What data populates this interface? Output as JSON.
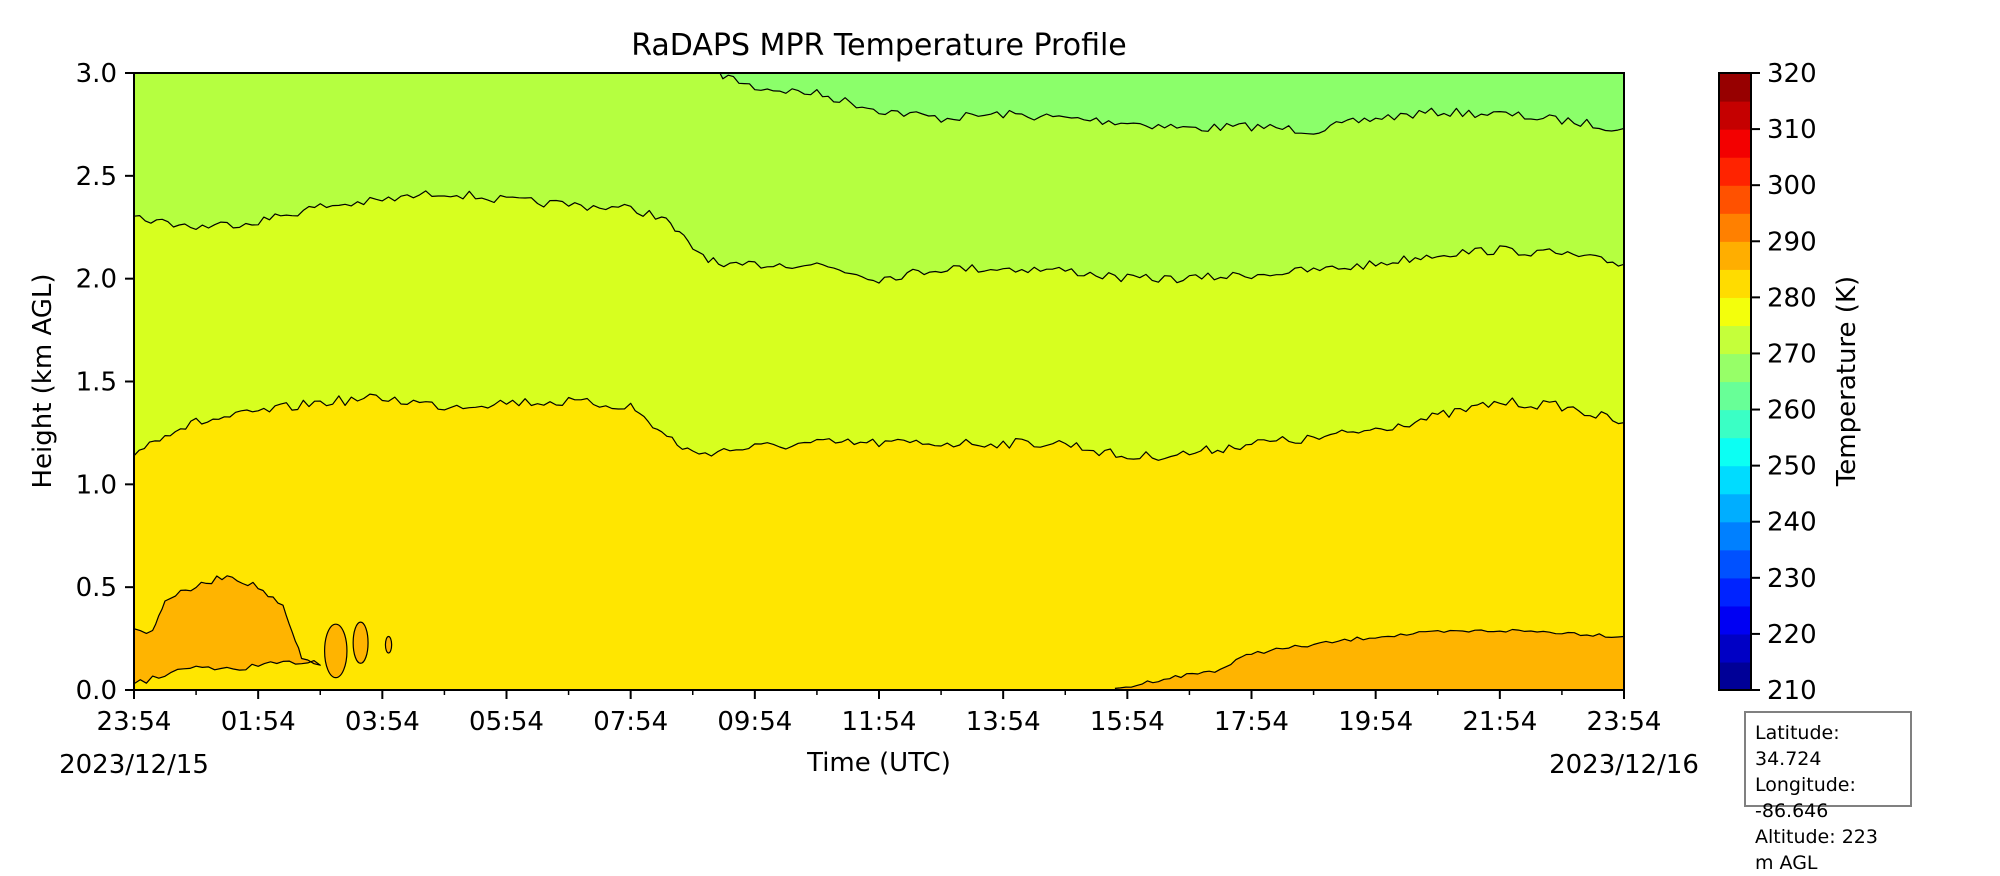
{
  "chart_data": {
    "type": "heatmap",
    "subtype": "filled-contour",
    "title": "RaDAPS MPR Temperature Profile",
    "xlabel": "Time (UTC)",
    "ylabel": "Height (km AGL)",
    "x_ticks": [
      "23:54",
      "01:54",
      "03:54",
      "05:54",
      "07:54",
      "09:54",
      "11:54",
      "13:54",
      "15:54",
      "17:54",
      "19:54",
      "21:54",
      "23:54"
    ],
    "x_tick_hours": [
      0,
      2,
      4,
      6,
      8,
      10,
      12,
      14,
      16,
      18,
      20,
      22,
      24
    ],
    "xlim_hours": [
      0,
      24
    ],
    "date_start": "2023/12/15",
    "date_end": "2023/12/16",
    "y_ticks": [
      "0.0",
      "0.5",
      "1.0",
      "1.5",
      "2.0",
      "2.5",
      "3.0"
    ],
    "ylim": [
      0,
      3.0
    ],
    "colorbar": {
      "label": "Temperature (K)",
      "range": [
        210,
        320
      ],
      "step": 5,
      "tick_labels": [
        "210",
        "220",
        "230",
        "240",
        "250",
        "260",
        "270",
        "280",
        "290",
        "300",
        "310",
        "320"
      ],
      "colormap": "jet"
    },
    "contour_bands": [
      {
        "range_K": "285-290",
        "color": "#ffb400"
      },
      {
        "range_K": "280-285",
        "color": "#ffe600"
      },
      {
        "range_K": "275-280",
        "color": "#d7ff1f"
      },
      {
        "range_K": "270-275",
        "color": "#b5ff40"
      },
      {
        "range_K": "265-270",
        "color": "#8bff6a"
      }
    ],
    "isolines": {
      "285K_morning_pocket": {
        "hours": [
          0,
          0.3,
          0.5,
          1.0,
          1.5,
          2.0,
          2.4,
          2.7,
          3.0,
          2.5,
          2.0,
          1.5,
          1.0,
          0.5,
          0
        ],
        "km": [
          0.3,
          0.28,
          0.44,
          0.5,
          0.56,
          0.5,
          0.4,
          0.15,
          0.13,
          0.13,
          0.12,
          0.1,
          0.11,
          0.07,
          0.03
        ]
      },
      "285K_evening": {
        "hours": [
          15.8,
          16.5,
          17.5,
          18.0,
          19.0,
          20.0,
          21.0,
          22.0,
          23.0,
          24.0
        ],
        "km": [
          0.0,
          0.05,
          0.1,
          0.18,
          0.22,
          0.26,
          0.28,
          0.29,
          0.28,
          0.26
        ]
      },
      "280K": {
        "hours": [
          0,
          0.5,
          1.0,
          2.0,
          3.0,
          4.0,
          5.0,
          6.0,
          7.0,
          8.0,
          8.5,
          9.0,
          10.0,
          11.0,
          12.0,
          13.0,
          14.0,
          15.0,
          16.0,
          17.0,
          18.0,
          19.0,
          20.0,
          21.0,
          22.0,
          23.0,
          24.0
        ],
        "km": [
          1.15,
          1.25,
          1.3,
          1.35,
          1.4,
          1.42,
          1.38,
          1.4,
          1.4,
          1.38,
          1.25,
          1.15,
          1.18,
          1.2,
          1.2,
          1.2,
          1.2,
          1.2,
          1.13,
          1.15,
          1.2,
          1.22,
          1.27,
          1.33,
          1.4,
          1.38,
          1.3
        ]
      },
      "275K": {
        "hours": [
          0,
          1.0,
          2.0,
          3.0,
          4.0,
          5.0,
          6.0,
          7.0,
          8.0,
          8.5,
          9.0,
          9.5,
          10.0,
          11.0,
          12.0,
          13.0,
          14.0,
          15.0,
          16.0,
          17.0,
          18.0,
          19.0,
          20.0,
          21.0,
          22.0,
          23.0,
          24.0
        ],
        "km": [
          2.3,
          2.25,
          2.28,
          2.35,
          2.38,
          2.42,
          2.38,
          2.36,
          2.34,
          2.3,
          2.15,
          2.05,
          2.07,
          2.07,
          2.0,
          2.05,
          2.05,
          2.04,
          2.0,
          2.0,
          2.02,
          2.04,
          2.07,
          2.12,
          2.14,
          2.12,
          2.07
        ]
      },
      "270K": {
        "hours": [
          9.4,
          10.0,
          11.0,
          12.0,
          13.0,
          14.0,
          15.0,
          16.0,
          17.0,
          18.0,
          19.0,
          20.0,
          21.0,
          22.0,
          23.0,
          24.0
        ],
        "km": [
          3.0,
          2.93,
          2.9,
          2.82,
          2.78,
          2.8,
          2.78,
          2.76,
          2.73,
          2.74,
          2.72,
          2.78,
          2.81,
          2.8,
          2.77,
          2.73
        ]
      }
    },
    "annotations": {
      "latitude": "Latitude: 34.724",
      "longitude": "Longitude: -86.646",
      "altitude": "Altitude: 223 m AGL"
    }
  }
}
